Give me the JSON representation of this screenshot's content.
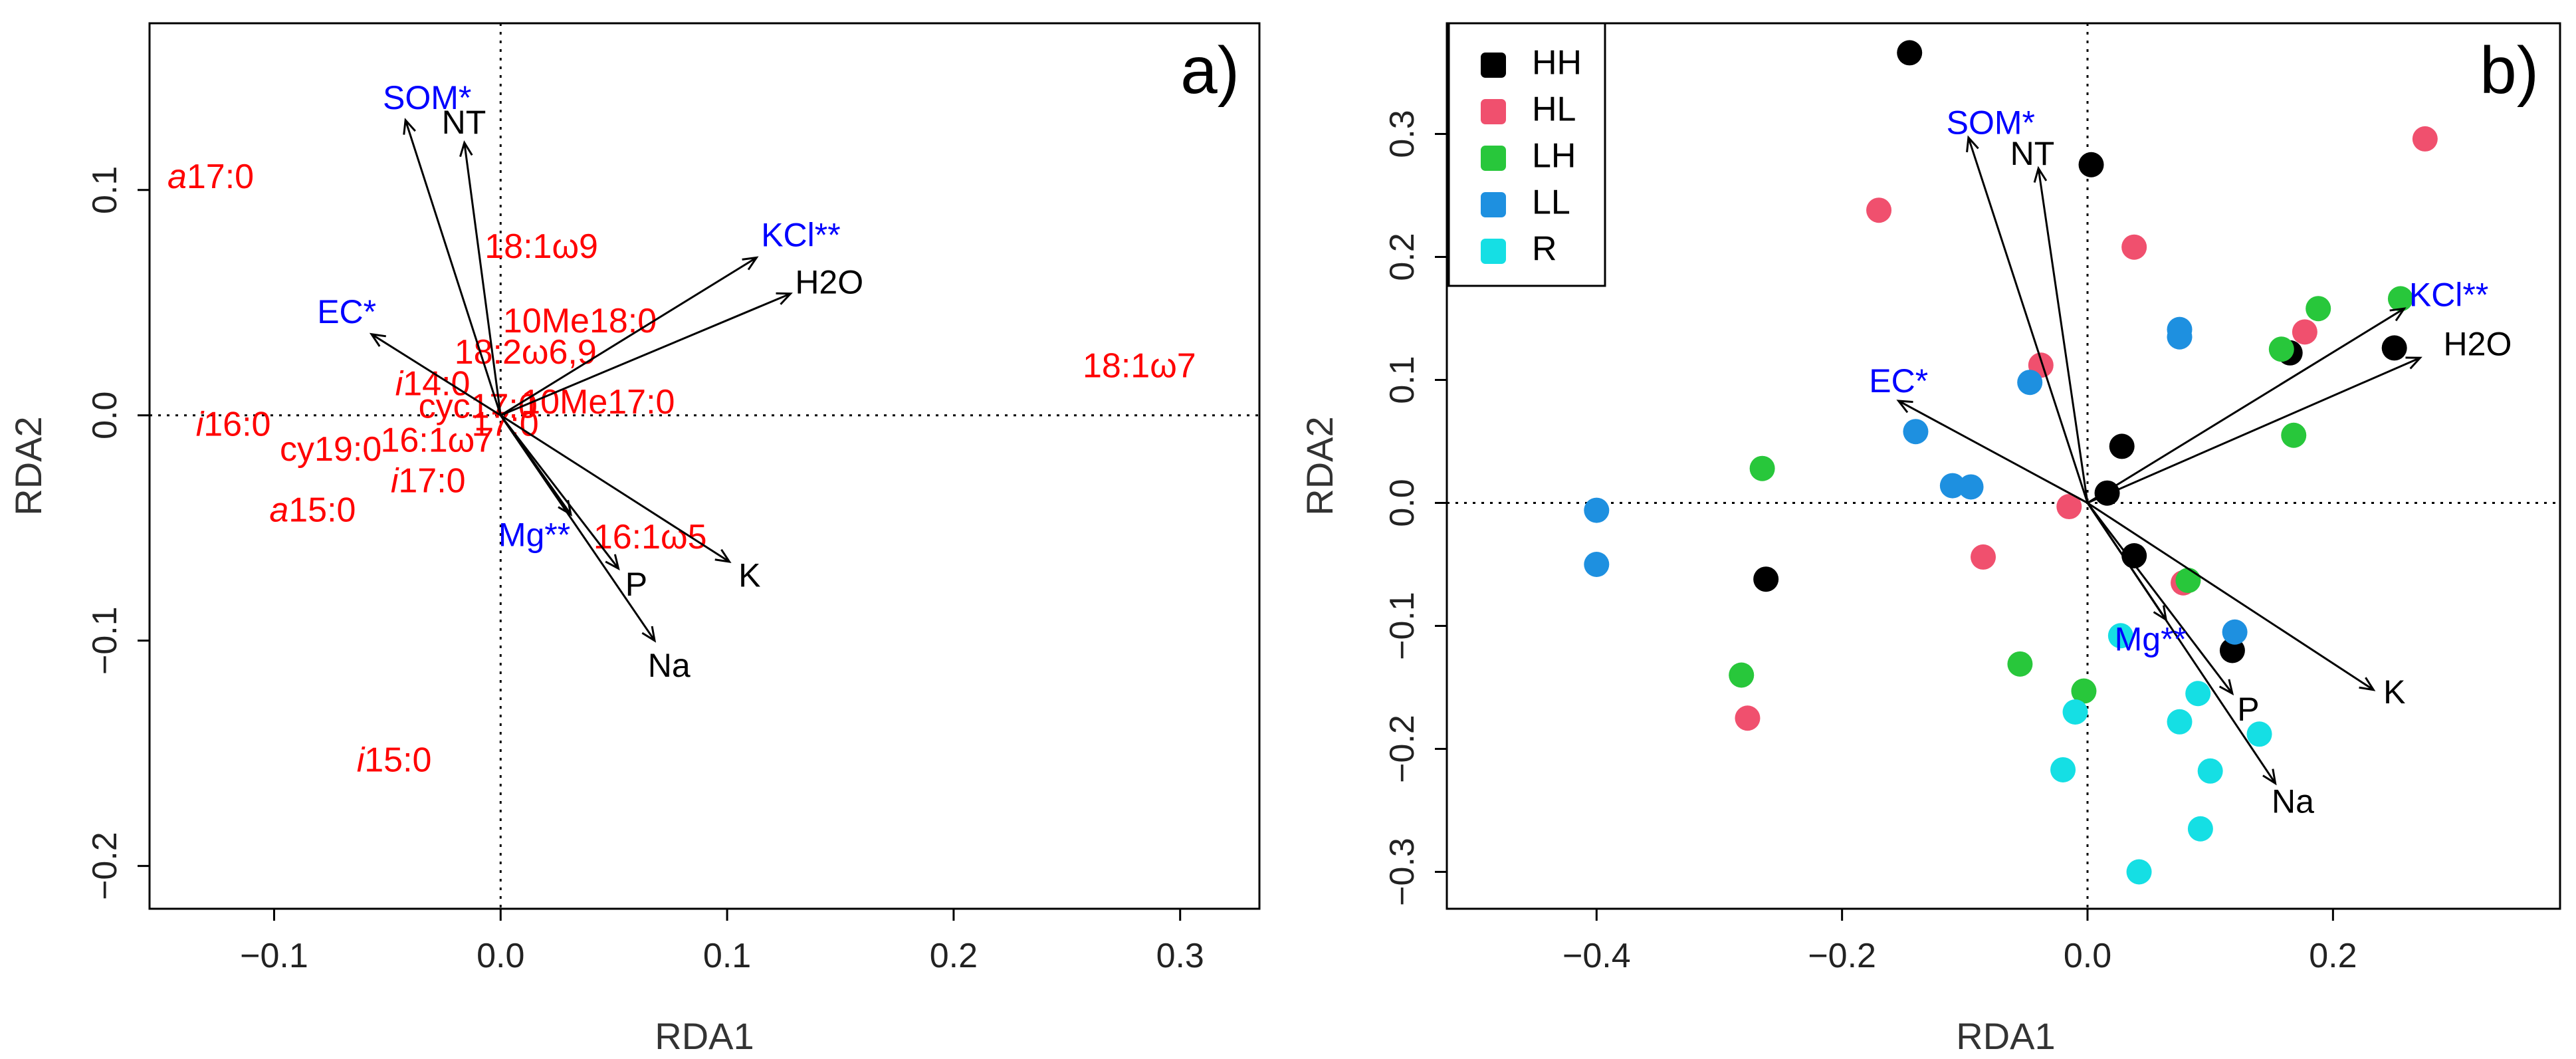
{
  "colors": {
    "fatty_acid": "#ff0000",
    "sig_variable": "#0000ff",
    "plain_variable": "#000000",
    "HH": "#000000",
    "HL": "#f0506e",
    "LH": "#28c73b",
    "LL": "#1e90e0",
    "R": "#15dfe4"
  },
  "chart_data": [
    {
      "type": "scatter",
      "panel_label": "a)",
      "xlabel": "RDA1",
      "ylabel": "RDA2",
      "xlim": [
        -0.155,
        0.335
      ],
      "ylim": [
        -0.219,
        0.174
      ],
      "xticks": [
        -0.1,
        0.0,
        0.1,
        0.2,
        0.3
      ],
      "xtick_labels": [
        "−0.1",
        "0.0",
        "0.1",
        "0.2",
        "0.3"
      ],
      "yticks": [
        -0.2,
        -0.1,
        0.0,
        0.1
      ],
      "ytick_labels": [
        "−0.2",
        "−0.1",
        "0.0",
        "0.1"
      ],
      "vectors": [
        {
          "label": "SOM*",
          "x": -0.042,
          "y": 0.131,
          "sig": true,
          "lx": -0.052,
          "ly": 0.136
        },
        {
          "label": "NT",
          "x": -0.016,
          "y": 0.121,
          "sig": false,
          "lx": -0.026,
          "ly": 0.125
        },
        {
          "label": "KCl**",
          "x": 0.113,
          "y": 0.07,
          "sig": true,
          "lx": 0.115,
          "ly": 0.075
        },
        {
          "label": "H2O",
          "x": 0.128,
          "y": 0.054,
          "sig": false,
          "lx": 0.13,
          "ly": 0.054
        },
        {
          "label": "EC*",
          "x": -0.057,
          "y": 0.036,
          "sig": true,
          "lx": -0.081,
          "ly": 0.041
        },
        {
          "label": "Mg**",
          "x": 0.031,
          "y": -0.044,
          "sig": true,
          "lx": -0.001,
          "ly": -0.058
        },
        {
          "label": "P",
          "x": 0.052,
          "y": -0.068,
          "sig": false,
          "lx": 0.055,
          "ly": -0.08
        },
        {
          "label": "K",
          "x": 0.101,
          "y": -0.065,
          "sig": false,
          "lx": 0.105,
          "ly": -0.076
        },
        {
          "label": "Na",
          "x": 0.068,
          "y": -0.1,
          "sig": false,
          "lx": 0.065,
          "ly": -0.116
        }
      ],
      "fatty_acids": [
        {
          "prefix": "a",
          "label": "17:0",
          "x": -0.128,
          "y": 0.105
        },
        {
          "prefix": "",
          "label": "18:1ω9",
          "x": 0.018,
          "y": 0.074
        },
        {
          "prefix": "",
          "label": "10Me18:0",
          "x": 0.035,
          "y": 0.041
        },
        {
          "prefix": "",
          "label": "18:2ω6,9",
          "x": 0.011,
          "y": 0.027
        },
        {
          "prefix": "",
          "label": "18:1ω7",
          "x": 0.282,
          "y": 0.021
        },
        {
          "prefix": "i",
          "label": "14:0",
          "x": -0.03,
          "y": 0.013
        },
        {
          "prefix": "",
          "label": "cyc17:0",
          "x": -0.01,
          "y": 0.003
        },
        {
          "prefix": "",
          "label": "10Me17:0",
          "x": 0.043,
          "y": 0.005
        },
        {
          "prefix": "i",
          "label": "16:0",
          "x": -0.118,
          "y": -0.005
        },
        {
          "prefix": "",
          "label": "17:0",
          "x": 0.002,
          "y": -0.005
        },
        {
          "prefix": "",
          "label": "cy19:0",
          "x": -0.075,
          "y": -0.016
        },
        {
          "prefix": "",
          "label": "16:1ω7",
          "x": -0.028,
          "y": -0.012
        },
        {
          "prefix": "i",
          "label": "17:0",
          "x": -0.032,
          "y": -0.03
        },
        {
          "prefix": "a",
          "label": "15:0",
          "x": -0.083,
          "y": -0.043
        },
        {
          "prefix": "",
          "label": "16:1ω5",
          "x": 0.066,
          "y": -0.055
        },
        {
          "prefix": "i",
          "label": "15:0",
          "x": -0.047,
          "y": -0.154
        }
      ]
    },
    {
      "type": "scatter",
      "panel_label": "b)",
      "xlabel": "RDA1",
      "ylabel": "RDA2",
      "xlim": [
        -0.522,
        0.385
      ],
      "ylim": [
        -0.33,
        0.39
      ],
      "xticks": [
        -0.4,
        -0.2,
        0.0,
        0.2
      ],
      "xtick_labels": [
        "−0.4",
        "−0.2",
        "0.0",
        "0.2"
      ],
      "yticks": [
        -0.3,
        -0.2,
        -0.1,
        0.0,
        0.1,
        0.2,
        0.3
      ],
      "ytick_labels": [
        "−0.3",
        "−0.2",
        "−0.1",
        "0.0",
        "0.1",
        "0.2",
        "0.3"
      ],
      "legend": [
        "HH",
        "HL",
        "LH",
        "LL",
        "R"
      ],
      "vectors": [
        {
          "label": "SOM*",
          "x": -0.097,
          "y": 0.297,
          "sig": true,
          "lx": -0.115,
          "ly": 0.3
        },
        {
          "label": "NT",
          "x": -0.04,
          "y": 0.272,
          "sig": false,
          "lx": -0.063,
          "ly": 0.275
        },
        {
          "label": "KCl**",
          "x": 0.258,
          "y": 0.158,
          "sig": true,
          "lx": 0.262,
          "ly": 0.16
        },
        {
          "label": "H2O",
          "x": 0.271,
          "y": 0.118,
          "sig": false,
          "lx": 0.29,
          "ly": 0.12
        },
        {
          "label": "EC*",
          "x": -0.154,
          "y": 0.083,
          "sig": true,
          "lx": -0.178,
          "ly": 0.09
        },
        {
          "label": "Mg**",
          "x": 0.064,
          "y": -0.095,
          "sig": true,
          "lx": 0.022,
          "ly": -0.12
        },
        {
          "label": "P",
          "x": 0.118,
          "y": -0.155,
          "sig": false,
          "lx": 0.122,
          "ly": -0.177
        },
        {
          "label": "K",
          "x": 0.233,
          "y": -0.152,
          "sig": false,
          "lx": 0.241,
          "ly": -0.163
        },
        {
          "label": "Na",
          "x": 0.153,
          "y": -0.228,
          "sig": false,
          "lx": 0.15,
          "ly": -0.252
        }
      ],
      "points": {
        "HH": [
          [
            -0.145,
            0.366
          ],
          [
            0.003,
            0.275
          ],
          [
            0.028,
            0.046
          ],
          [
            0.016,
            0.008
          ],
          [
            0.165,
            0.122
          ],
          [
            0.25,
            0.126
          ],
          [
            0.038,
            -0.043
          ],
          [
            0.118,
            -0.12
          ],
          [
            -0.262,
            -0.062
          ]
        ],
        "HL": [
          [
            0.275,
            0.296
          ],
          [
            -0.17,
            0.238
          ],
          [
            0.038,
            0.208
          ],
          [
            -0.038,
            0.112
          ],
          [
            0.177,
            0.139
          ],
          [
            -0.015,
            -0.003
          ],
          [
            -0.085,
            -0.044
          ],
          [
            0.078,
            -0.065
          ],
          [
            -0.277,
            -0.175
          ]
        ],
        "LH": [
          [
            0.255,
            0.166
          ],
          [
            0.188,
            0.158
          ],
          [
            0.158,
            0.125
          ],
          [
            0.168,
            0.055
          ],
          [
            -0.265,
            0.028
          ],
          [
            0.082,
            -0.063
          ],
          [
            -0.055,
            -0.131
          ],
          [
            -0.003,
            -0.153
          ],
          [
            -0.282,
            -0.14
          ]
        ],
        "LL": [
          [
            0.075,
            0.141
          ],
          [
            0.075,
            0.135
          ],
          [
            -0.047,
            0.098
          ],
          [
            -0.14,
            0.058
          ],
          [
            -0.11,
            0.014
          ],
          [
            -0.095,
            0.013
          ],
          [
            -0.4,
            -0.006
          ],
          [
            -0.4,
            -0.05
          ],
          [
            0.12,
            -0.105
          ]
        ],
        "R": [
          [
            0.027,
            -0.108
          ],
          [
            0.09,
            -0.155
          ],
          [
            -0.01,
            -0.17
          ],
          [
            0.075,
            -0.178
          ],
          [
            0.14,
            -0.188
          ],
          [
            0.1,
            -0.218
          ],
          [
            -0.02,
            -0.217
          ],
          [
            0.092,
            -0.265
          ],
          [
            0.042,
            -0.3
          ]
        ]
      }
    }
  ]
}
